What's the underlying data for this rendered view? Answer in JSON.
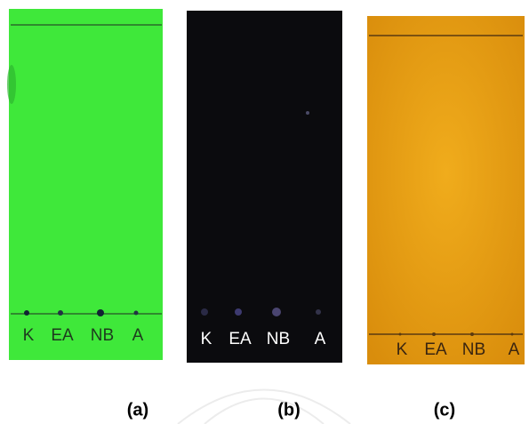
{
  "panels": [
    {
      "caption": "(a)",
      "lanes": [
        "K",
        "EA",
        "NB",
        "A"
      ]
    },
    {
      "caption": "(b)",
      "lanes": [
        "K",
        "EA",
        "NB",
        "A"
      ]
    },
    {
      "caption": "(c)",
      "lanes": [
        "K",
        "EA",
        "NB",
        "A"
      ]
    }
  ]
}
